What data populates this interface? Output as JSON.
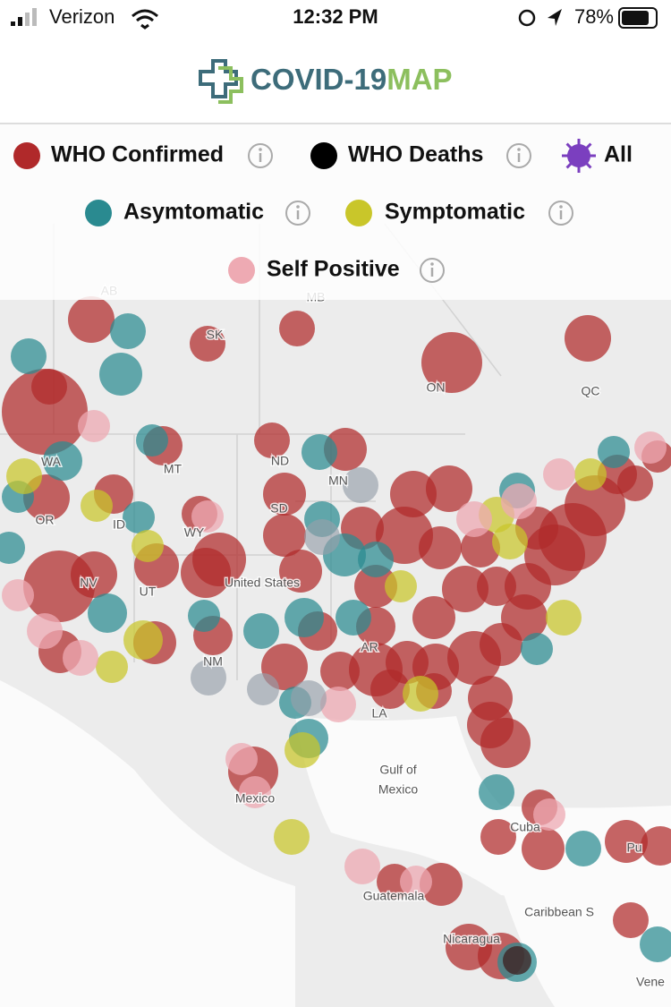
{
  "status_bar": {
    "carrier": "Verizon",
    "time": "12:32 PM",
    "battery": "78%"
  },
  "header": {
    "logo_text": "COVID-19",
    "logo_accent": "MAP"
  },
  "legend": [
    {
      "label": "WHO Confirmed",
      "color": "#b0292a"
    },
    {
      "label": "WHO Deaths",
      "color": "#000000"
    },
    {
      "label": "All",
      "color": "#7b3fbf"
    },
    {
      "label": "Asymtomatic",
      "color": "#2a8a90"
    },
    {
      "label": "Symptomatic",
      "color": "#c9c62a"
    },
    {
      "label": "Self Positive",
      "color": "#eeaab3"
    }
  ],
  "map": {
    "labels": [
      "AB",
      "MB",
      "SK",
      "ON",
      "QC",
      "WA",
      "MT",
      "ND",
      "MN",
      "OR",
      "ID",
      "WY",
      "SD",
      "NV",
      "UT",
      "United States",
      "NM",
      "AR",
      "LA",
      "Mexico",
      "Gulf of",
      "Mexico",
      "Cuba",
      "Guatemala",
      "Caribbean S",
      "Nicaragua",
      "Pu",
      "Vene"
    ]
  }
}
